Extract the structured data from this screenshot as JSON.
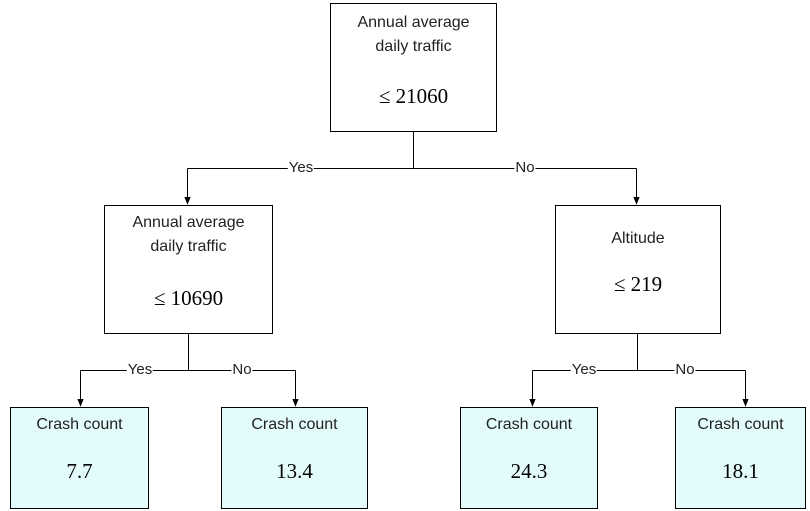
{
  "nodes": [
    {
      "label": "Annual average daily traffic",
      "condition": "≤ 21060"
    },
    {
      "label": "Annual average daily traffic",
      "condition": "≤ 10690"
    },
    {
      "label": "Altitude",
      "condition": "≤ 219"
    }
  ],
  "edges": [
    "Yes",
    "No",
    "Yes",
    "No",
    "Yes",
    "No"
  ],
  "leaves": [
    {
      "label": "Crash count",
      "value": 7.7
    },
    {
      "label": "Crash count",
      "value": 13.4
    },
    {
      "label": "Crash count",
      "value": 24.3
    },
    {
      "label": "Crash count",
      "value": 18.1
    }
  ]
}
